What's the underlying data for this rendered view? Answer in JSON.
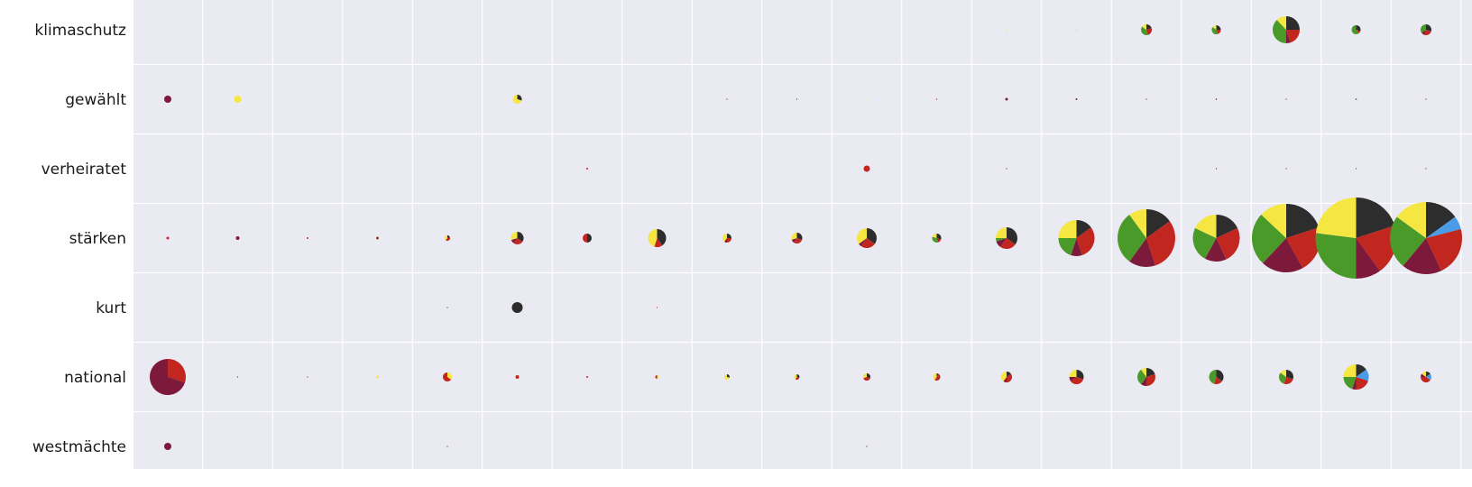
{
  "chart_data": {
    "type": "pie",
    "rows": [
      "klimaschutz",
      "gewählt",
      "verheiratet",
      "stärken",
      "kurt",
      "national",
      "westmächte"
    ],
    "n_columns": 19,
    "colors": {
      "black": "#2d2d2d",
      "red": "#c1261f",
      "darkred": "#7d1a3b",
      "green": "#4a9a2a",
      "yellow": "#f5e642",
      "blue": "#4a9be8"
    },
    "background": "#eaeaf2",
    "grid_color": "#ffffff",
    "cells": [
      {
        "row": 0,
        "col": 13,
        "size": 0.5,
        "slices": [
          [
            "yellow",
            1
          ]
        ]
      },
      {
        "row": 0,
        "col": 14,
        "size": 0.8,
        "slices": [
          [
            "yellow",
            1
          ]
        ]
      },
      {
        "row": 0,
        "col": 15,
        "size": 6,
        "slices": [
          [
            "black",
            0.2
          ],
          [
            "red",
            0.25
          ],
          [
            "green",
            0.4
          ],
          [
            "yellow",
            0.15
          ]
        ]
      },
      {
        "row": 0,
        "col": 16,
        "size": 5,
        "slices": [
          [
            "black",
            0.25
          ],
          [
            "red",
            0.2
          ],
          [
            "green",
            0.4
          ],
          [
            "yellow",
            0.15
          ]
        ]
      },
      {
        "row": 0,
        "col": 17,
        "size": 15,
        "slices": [
          [
            "black",
            0.25
          ],
          [
            "red",
            0.2
          ],
          [
            "darkred",
            0.05
          ],
          [
            "green",
            0.38
          ],
          [
            "yellow",
            0.12
          ]
        ]
      },
      {
        "row": 0,
        "col": 18,
        "size": 5,
        "slices": [
          [
            "black",
            0.3
          ],
          [
            "red",
            0.1
          ],
          [
            "green",
            0.6
          ]
        ]
      },
      {
        "row": 0,
        "col": 19,
        "size": 6,
        "slices": [
          [
            "black",
            0.3
          ],
          [
            "red",
            0.25
          ],
          [
            "darkred",
            0.1
          ],
          [
            "green",
            0.35
          ]
        ]
      },
      {
        "row": 1,
        "col": 1,
        "size": 4,
        "slices": [
          [
            "darkred",
            1
          ]
        ]
      },
      {
        "row": 1,
        "col": 2,
        "size": 4,
        "slices": [
          [
            "yellow",
            1
          ]
        ]
      },
      {
        "row": 1,
        "col": 6,
        "size": 5,
        "slices": [
          [
            "black",
            0.3
          ],
          [
            "yellow",
            0.7
          ]
        ]
      },
      {
        "row": 1,
        "col": 9,
        "size": 0.5,
        "slices": [
          [
            "darkred",
            1
          ]
        ]
      },
      {
        "row": 1,
        "col": 10,
        "size": 0.5,
        "slices": [
          [
            "darkred",
            1
          ]
        ]
      },
      {
        "row": 1,
        "col": 11,
        "size": 0.5,
        "slices": [
          [
            "yellow",
            1
          ]
        ]
      },
      {
        "row": 1,
        "col": 12,
        "size": 0.4,
        "slices": [
          [
            "darkred",
            1
          ]
        ]
      },
      {
        "row": 1,
        "col": 13,
        "size": 1.5,
        "slices": [
          [
            "darkred",
            1
          ]
        ]
      },
      {
        "row": 1,
        "col": 14,
        "size": 1,
        "slices": [
          [
            "darkred",
            1
          ]
        ]
      },
      {
        "row": 1,
        "col": 15,
        "size": 0.5,
        "slices": [
          [
            "darkred",
            1
          ]
        ]
      },
      {
        "row": 1,
        "col": 16,
        "size": 0.8,
        "slices": [
          [
            "darkred",
            1
          ]
        ]
      },
      {
        "row": 1,
        "col": 17,
        "size": 0.4,
        "slices": [
          [
            "darkred",
            1
          ]
        ]
      },
      {
        "row": 1,
        "col": 18,
        "size": 0.8,
        "slices": [
          [
            "darkred",
            1
          ]
        ]
      },
      {
        "row": 1,
        "col": 19,
        "size": 0.4,
        "slices": [
          [
            "darkred",
            1
          ]
        ]
      },
      {
        "row": 2,
        "col": 7,
        "size": 1,
        "slices": [
          [
            "red",
            1
          ]
        ]
      },
      {
        "row": 2,
        "col": 11,
        "size": 3.5,
        "slices": [
          [
            "red",
            1
          ]
        ]
      },
      {
        "row": 2,
        "col": 13,
        "size": 0.4,
        "slices": [
          [
            "darkred",
            1
          ]
        ]
      },
      {
        "row": 2,
        "col": 16,
        "size": 0.4,
        "slices": [
          [
            "darkred",
            1
          ]
        ]
      },
      {
        "row": 2,
        "col": 17,
        "size": 0.4,
        "slices": [
          [
            "darkred",
            1
          ]
        ]
      },
      {
        "row": 2,
        "col": 18,
        "size": 0.3,
        "slices": [
          [
            "darkred",
            1
          ]
        ]
      },
      {
        "row": 2,
        "col": 19,
        "size": 0.3,
        "slices": [
          [
            "darkred",
            1
          ]
        ]
      },
      {
        "row": 3,
        "col": 1,
        "size": 1.5,
        "slices": [
          [
            "red",
            1
          ]
        ]
      },
      {
        "row": 3,
        "col": 2,
        "size": 2,
        "slices": [
          [
            "darkred",
            1
          ]
        ]
      },
      {
        "row": 3,
        "col": 3,
        "size": 1,
        "slices": [
          [
            "red",
            1
          ]
        ]
      },
      {
        "row": 3,
        "col": 4,
        "size": 1.5,
        "slices": [
          [
            "red",
            1
          ]
        ]
      },
      {
        "row": 3,
        "col": 5,
        "size": 3,
        "slices": [
          [
            "black",
            0.2
          ],
          [
            "red",
            0.4
          ],
          [
            "yellow",
            0.4
          ]
        ]
      },
      {
        "row": 3,
        "col": 6,
        "size": 7,
        "slices": [
          [
            "black",
            0.35
          ],
          [
            "red",
            0.25
          ],
          [
            "darkred",
            0.1
          ],
          [
            "yellow",
            0.3
          ]
        ]
      },
      {
        "row": 3,
        "col": 7,
        "size": 5,
        "slices": [
          [
            "black",
            0.5
          ],
          [
            "red",
            0.5
          ]
        ]
      },
      {
        "row": 3,
        "col": 8,
        "size": 10,
        "slices": [
          [
            "black",
            0.4
          ],
          [
            "red",
            0.15
          ],
          [
            "yellow",
            0.45
          ]
        ]
      },
      {
        "row": 3,
        "col": 9,
        "size": 5,
        "slices": [
          [
            "black",
            0.25
          ],
          [
            "red",
            0.25
          ],
          [
            "darkred",
            0.1
          ],
          [
            "yellow",
            0.4
          ]
        ]
      },
      {
        "row": 3,
        "col": 10,
        "size": 6,
        "slices": [
          [
            "black",
            0.3
          ],
          [
            "red",
            0.3
          ],
          [
            "darkred",
            0.1
          ],
          [
            "yellow",
            0.3
          ]
        ]
      },
      {
        "row": 3,
        "col": 11,
        "size": 11,
        "slices": [
          [
            "black",
            0.35
          ],
          [
            "red",
            0.25
          ],
          [
            "darkred",
            0.05
          ],
          [
            "yellow",
            0.35
          ]
        ]
      },
      {
        "row": 3,
        "col": 12,
        "size": 5,
        "slices": [
          [
            "black",
            0.3
          ],
          [
            "red",
            0.15
          ],
          [
            "green",
            0.35
          ],
          [
            "yellow",
            0.2
          ]
        ]
      },
      {
        "row": 3,
        "col": 13,
        "size": 12,
        "slices": [
          [
            "black",
            0.35
          ],
          [
            "red",
            0.25
          ],
          [
            "darkred",
            0.1
          ],
          [
            "green",
            0.05
          ],
          [
            "yellow",
            0.25
          ]
        ]
      },
      {
        "row": 3,
        "col": 14,
        "size": 20,
        "slices": [
          [
            "black",
            0.15
          ],
          [
            "red",
            0.3
          ],
          [
            "darkred",
            0.1
          ],
          [
            "green",
            0.2
          ],
          [
            "yellow",
            0.25
          ]
        ]
      },
      {
        "row": 3,
        "col": 15,
        "size": 32,
        "slices": [
          [
            "black",
            0.15
          ],
          [
            "red",
            0.3
          ],
          [
            "darkred",
            0.15
          ],
          [
            "green",
            0.3
          ],
          [
            "yellow",
            0.1
          ]
        ]
      },
      {
        "row": 3,
        "col": 16,
        "size": 26,
        "slices": [
          [
            "black",
            0.18
          ],
          [
            "red",
            0.25
          ],
          [
            "darkred",
            0.15
          ],
          [
            "green",
            0.24
          ],
          [
            "yellow",
            0.18
          ]
        ]
      },
      {
        "row": 3,
        "col": 17,
        "size": 38,
        "slices": [
          [
            "black",
            0.2
          ],
          [
            "red",
            0.22
          ],
          [
            "darkred",
            0.2
          ],
          [
            "green",
            0.25
          ],
          [
            "yellow",
            0.13
          ]
        ]
      },
      {
        "row": 3,
        "col": 18,
        "size": 45,
        "slices": [
          [
            "black",
            0.2
          ],
          [
            "red",
            0.2
          ],
          [
            "darkred",
            0.1
          ],
          [
            "green",
            0.27
          ],
          [
            "yellow",
            0.23
          ]
        ]
      },
      {
        "row": 3,
        "col": 19,
        "size": 40,
        "slices": [
          [
            "black",
            0.15
          ],
          [
            "blue",
            0.06
          ],
          [
            "red",
            0.22
          ],
          [
            "darkred",
            0.18
          ],
          [
            "green",
            0.24
          ],
          [
            "yellow",
            0.15
          ]
        ]
      },
      {
        "row": 4,
        "col": 5,
        "size": 0.4,
        "slices": [
          [
            "black",
            1
          ]
        ]
      },
      {
        "row": 4,
        "col": 6,
        "size": 6,
        "slices": [
          [
            "black",
            1
          ]
        ]
      },
      {
        "row": 4,
        "col": 8,
        "size": 0.3,
        "slices": [
          [
            "red",
            1
          ]
        ]
      },
      {
        "row": 5,
        "col": 1,
        "size": 20,
        "slices": [
          [
            "red",
            0.3
          ],
          [
            "darkred",
            0.7
          ]
        ]
      },
      {
        "row": 5,
        "col": 2,
        "size": 0.3,
        "slices": [
          [
            "darkred",
            1
          ]
        ]
      },
      {
        "row": 5,
        "col": 3,
        "size": 0.6,
        "slices": [
          [
            "red",
            1
          ]
        ]
      },
      {
        "row": 5,
        "col": 4,
        "size": 1.5,
        "slices": [
          [
            "yellow",
            1
          ]
        ]
      },
      {
        "row": 5,
        "col": 5,
        "size": 5,
        "slices": [
          [
            "yellow",
            0.35
          ],
          [
            "red",
            0.65
          ]
        ]
      },
      {
        "row": 5,
        "col": 6,
        "size": 2,
        "slices": [
          [
            "red",
            1
          ]
        ]
      },
      {
        "row": 5,
        "col": 7,
        "size": 1,
        "slices": [
          [
            "red",
            1
          ]
        ]
      },
      {
        "row": 5,
        "col": 8,
        "size": 2,
        "slices": [
          [
            "yellow",
            0.5
          ],
          [
            "red",
            0.5
          ]
        ]
      },
      {
        "row": 5,
        "col": 9,
        "size": 3,
        "slices": [
          [
            "black",
            0.3
          ],
          [
            "yellow",
            0.7
          ]
        ]
      },
      {
        "row": 5,
        "col": 10,
        "size": 3,
        "slices": [
          [
            "black",
            0.3
          ],
          [
            "red",
            0.3
          ],
          [
            "yellow",
            0.4
          ]
        ]
      },
      {
        "row": 5,
        "col": 11,
        "size": 4,
        "slices": [
          [
            "black",
            0.3
          ],
          [
            "red",
            0.4
          ],
          [
            "yellow",
            0.3
          ]
        ]
      },
      {
        "row": 5,
        "col": 12,
        "size": 4,
        "slices": [
          [
            "black",
            0.1
          ],
          [
            "red",
            0.5
          ],
          [
            "yellow",
            0.4
          ]
        ]
      },
      {
        "row": 5,
        "col": 13,
        "size": 6,
        "slices": [
          [
            "black",
            0.15
          ],
          [
            "red",
            0.35
          ],
          [
            "darkred",
            0.1
          ],
          [
            "yellow",
            0.4
          ]
        ]
      },
      {
        "row": 5,
        "col": 14,
        "size": 8,
        "slices": [
          [
            "black",
            0.3
          ],
          [
            "red",
            0.35
          ],
          [
            "darkred",
            0.1
          ],
          [
            "yellow",
            0.25
          ]
        ]
      },
      {
        "row": 5,
        "col": 15,
        "size": 10,
        "slices": [
          [
            "black",
            0.2
          ],
          [
            "red",
            0.3
          ],
          [
            "darkred",
            0.1
          ],
          [
            "green",
            0.3
          ],
          [
            "yellow",
            0.1
          ]
        ]
      },
      {
        "row": 5,
        "col": 16,
        "size": 8,
        "slices": [
          [
            "black",
            0.35
          ],
          [
            "red",
            0.2
          ],
          [
            "green",
            0.45
          ]
        ]
      },
      {
        "row": 5,
        "col": 17,
        "size": 8,
        "slices": [
          [
            "black",
            0.3
          ],
          [
            "red",
            0.25
          ],
          [
            "green",
            0.3
          ],
          [
            "yellow",
            0.15
          ]
        ]
      },
      {
        "row": 5,
        "col": 18,
        "size": 14,
        "slices": [
          [
            "black",
            0.15
          ],
          [
            "blue",
            0.15
          ],
          [
            "red",
            0.2
          ],
          [
            "darkred",
            0.05
          ],
          [
            "green",
            0.2
          ],
          [
            "yellow",
            0.25
          ]
        ]
      },
      {
        "row": 5,
        "col": 19,
        "size": 6,
        "slices": [
          [
            "black",
            0.15
          ],
          [
            "blue",
            0.2
          ],
          [
            "red",
            0.4
          ],
          [
            "darkred",
            0.1
          ],
          [
            "yellow",
            0.15
          ]
        ]
      },
      {
        "row": 6,
        "col": 1,
        "size": 4,
        "slices": [
          [
            "darkred",
            1
          ]
        ]
      },
      {
        "row": 6,
        "col": 5,
        "size": 0.3,
        "slices": [
          [
            "darkred",
            1
          ]
        ]
      },
      {
        "row": 6,
        "col": 11,
        "size": 0.3,
        "slices": [
          [
            "darkred",
            1
          ]
        ]
      }
    ]
  }
}
